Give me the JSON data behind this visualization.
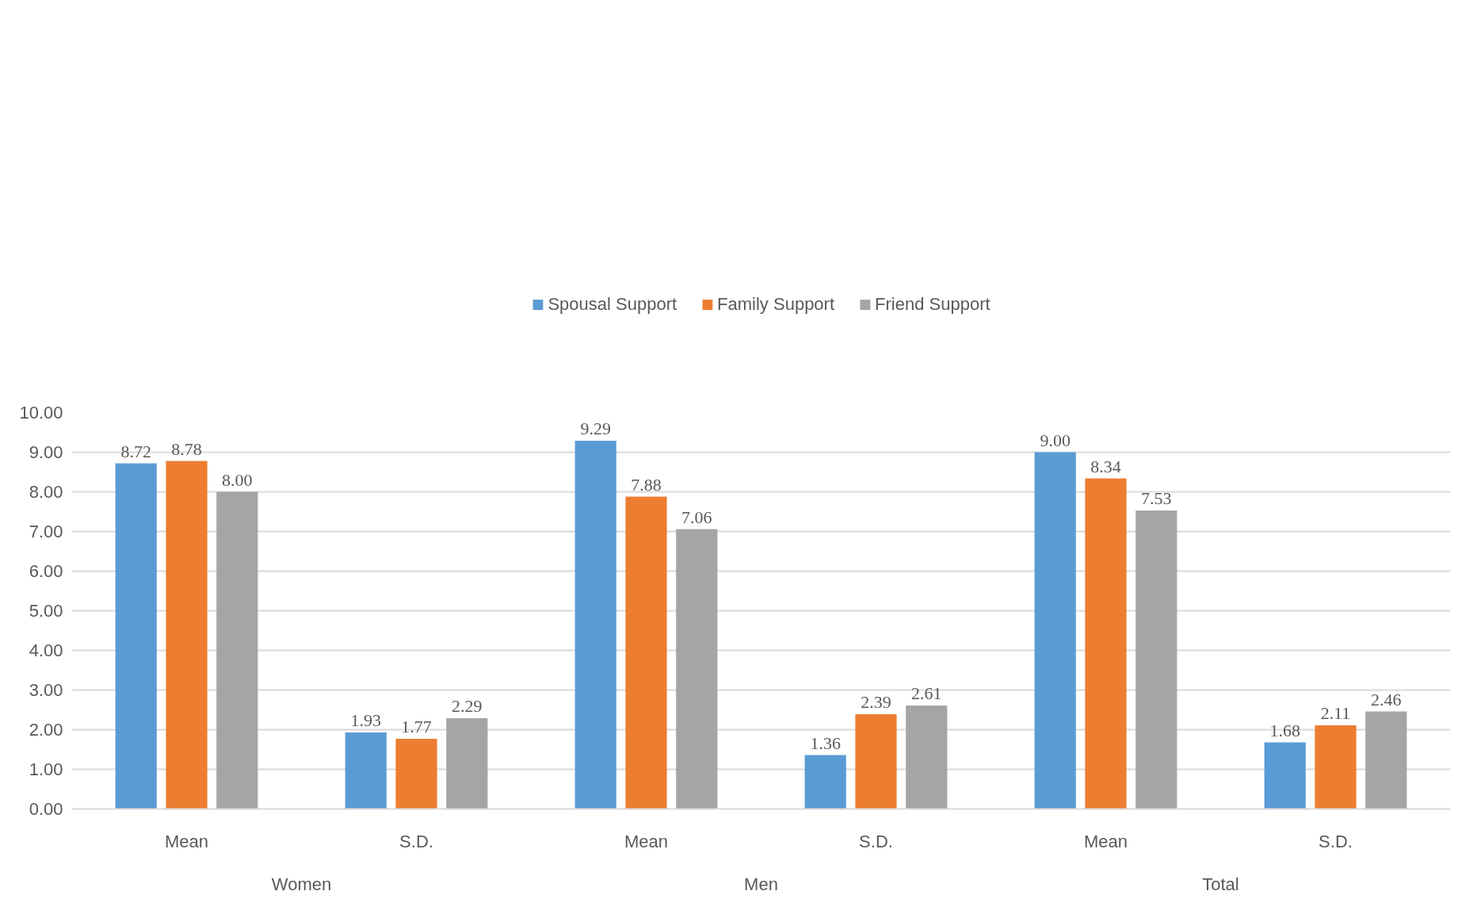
{
  "chart_data": {
    "type": "bar",
    "categories": [
      "Mean",
      "S.D.",
      "Mean",
      "S.D.",
      "Mean",
      "S.D."
    ],
    "annotations": [
      "Women",
      "Men",
      "Total"
    ],
    "series": [
      {
        "name": "Spousal Support",
        "color": "#5b9bd5",
        "values": [
          8.72,
          1.93,
          9.29,
          1.36,
          9.0,
          1.68
        ],
        "value_labels": [
          "8.72",
          "1.93",
          "9.29",
          "1.36",
          "9.00",
          "1.68"
        ]
      },
      {
        "name": "Family Support",
        "color": "#ed7d31",
        "values": [
          8.78,
          1.77,
          7.88,
          2.39,
          8.34,
          2.11
        ],
        "value_labels": [
          "8.78",
          "1.77",
          "7.88",
          "2.39",
          "8.34",
          "2.11"
        ]
      },
      {
        "name": "Friend Support",
        "color": "#a5a5a5",
        "values": [
          8.0,
          2.29,
          7.06,
          2.61,
          7.53,
          2.46
        ],
        "value_labels": [
          "8.00",
          "2.29",
          "7.06",
          "2.61",
          "7.53",
          "2.46"
        ]
      }
    ],
    "ylim": [
      0,
      10
    ],
    "yticks": [
      {
        "value": 0,
        "label": "0.00"
      },
      {
        "value": 1,
        "label": "1.00"
      },
      {
        "value": 2,
        "label": "2.00"
      },
      {
        "value": 3,
        "label": "3.00"
      },
      {
        "value": 4,
        "label": "4.00"
      },
      {
        "value": 5,
        "label": "5.00"
      },
      {
        "value": 6,
        "label": "6.00"
      },
      {
        "value": 7,
        "label": "7.00"
      },
      {
        "value": 8,
        "label": "8.00"
      },
      {
        "value": 9,
        "label": "9.00"
      },
      {
        "value": 10,
        "label": "10.00"
      }
    ],
    "grid": "y",
    "legend": "top"
  }
}
